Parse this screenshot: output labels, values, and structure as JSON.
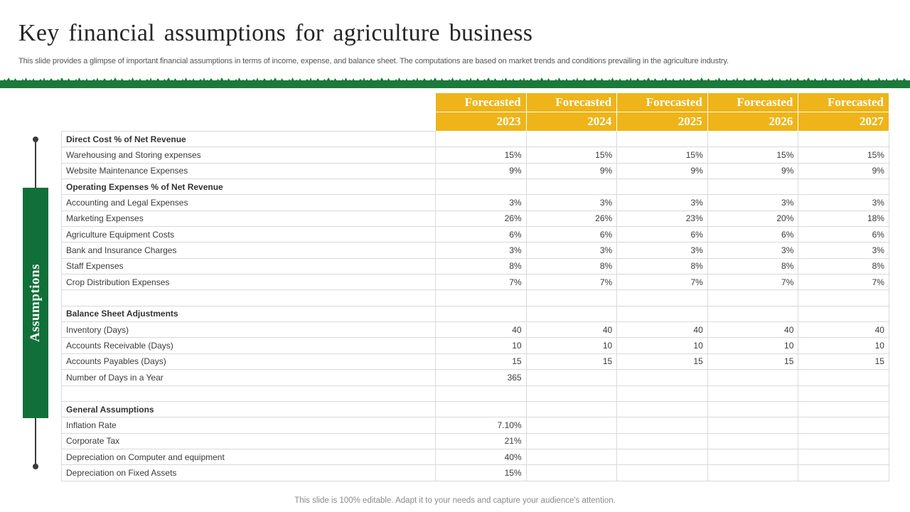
{
  "header": {
    "title": "Key financial assumptions for agriculture business",
    "subtitle": "This slide provides a glimpse of important financial assumptions in terms of income, expense, and balance sheet. The computations are based on market trends and conditions prevailing in the agriculture industry."
  },
  "sidebar": {
    "label": "Assumptions"
  },
  "colors": {
    "accent_green": "#11703a",
    "header_gold": "#eeb419",
    "grass": "#1b7a3a"
  },
  "table": {
    "columns": [
      {
        "line1": "Forecasted",
        "line2": "2023"
      },
      {
        "line1": "Forecasted",
        "line2": "2024"
      },
      {
        "line1": "Forecasted",
        "line2": "2025"
      },
      {
        "line1": "Forecasted",
        "line2": "2026"
      },
      {
        "line1": "Forecasted",
        "line2": "2027"
      }
    ],
    "rows": [
      {
        "label": "Direct Cost % of Net Revenue",
        "section": true,
        "values": [
          "",
          "",
          "",
          "",
          ""
        ]
      },
      {
        "label": "Warehousing and Storing expenses",
        "values": [
          "15%",
          "15%",
          "15%",
          "15%",
          "15%"
        ]
      },
      {
        "label": "Website Maintenance Expenses",
        "values": [
          "9%",
          "9%",
          "9%",
          "9%",
          "9%"
        ]
      },
      {
        "label": "Operating Expenses % of Net Revenue",
        "section": true,
        "values": [
          "",
          "",
          "",
          "",
          ""
        ]
      },
      {
        "label": "Accounting and Legal Expenses",
        "values": [
          "3%",
          "3%",
          "3%",
          "3%",
          "3%"
        ]
      },
      {
        "label": "Marketing Expenses",
        "values": [
          "26%",
          "26%",
          "23%",
          "20%",
          "18%"
        ]
      },
      {
        "label": "Agriculture Equipment Costs",
        "values": [
          "6%",
          "6%",
          "6%",
          "6%",
          "6%"
        ]
      },
      {
        "label": "Bank and Insurance Charges",
        "values": [
          "3%",
          "3%",
          "3%",
          "3%",
          "3%"
        ]
      },
      {
        "label": "Staff Expenses",
        "values": [
          "8%",
          "8%",
          "8%",
          "8%",
          "8%"
        ]
      },
      {
        "label": "Crop Distribution Expenses",
        "values": [
          "7%",
          "7%",
          "7%",
          "7%",
          "7%"
        ]
      },
      {
        "label": "",
        "values": [
          "",
          "",
          "",
          "",
          ""
        ]
      },
      {
        "label": "Balance Sheet Adjustments",
        "section": true,
        "values": [
          "",
          "",
          "",
          "",
          ""
        ]
      },
      {
        "label": "Inventory (Days)",
        "values": [
          "40",
          "40",
          "40",
          "40",
          "40"
        ]
      },
      {
        "label": "Accounts Receivable (Days)",
        "values": [
          "10",
          "10",
          "10",
          "10",
          "10"
        ]
      },
      {
        "label": "Accounts Payables (Days)",
        "values": [
          "15",
          "15",
          "15",
          "15",
          "15"
        ]
      },
      {
        "label": "Number of Days in a Year",
        "values": [
          "365",
          "",
          "",
          "",
          ""
        ]
      },
      {
        "label": "",
        "values": [
          "",
          "",
          "",
          "",
          ""
        ]
      },
      {
        "label": "General Assumptions",
        "section": true,
        "values": [
          "",
          "",
          "",
          "",
          ""
        ]
      },
      {
        "label": "Inflation Rate",
        "values": [
          "7.10%",
          "",
          "",
          "",
          ""
        ]
      },
      {
        "label": "Corporate Tax",
        "values": [
          "21%",
          "",
          "",
          "",
          ""
        ]
      },
      {
        "label": "Depreciation on Computer and equipment",
        "values": [
          "40%",
          "",
          "",
          "",
          ""
        ]
      },
      {
        "label": "Depreciation on Fixed Assets",
        "values": [
          "15%",
          "",
          "",
          "",
          ""
        ]
      }
    ]
  },
  "footer": {
    "text": "This slide is 100% editable. Adapt it to your needs and capture your audience's attention."
  }
}
